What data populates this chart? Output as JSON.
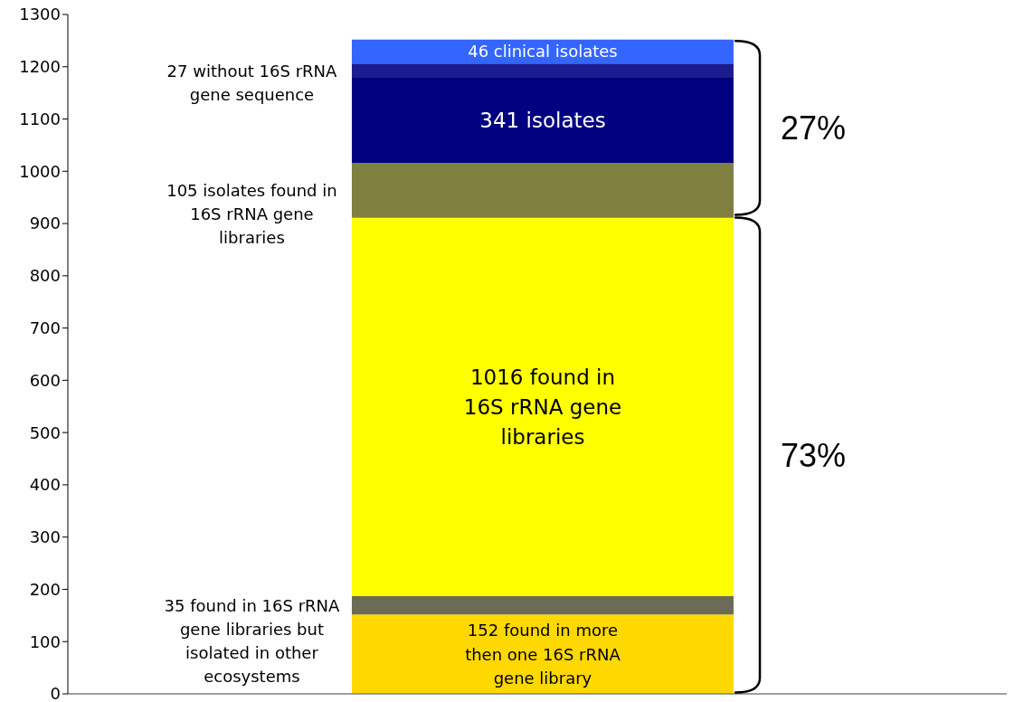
{
  "chart_data": {
    "type": "bar",
    "stacked": true,
    "categories": [
      null
    ],
    "tick_labels": "y",
    "ylim": [
      0,
      1300
    ],
    "yticks": [
      0,
      100,
      200,
      300,
      400,
      500,
      600,
      700,
      800,
      900,
      1000,
      1100,
      1200,
      1300
    ],
    "series": [
      {
        "color": "#ffd800",
        "values": [
          152
        ],
        "value_labels": [
          "152 found in more then one 16S rRNA gene library"
        ]
      },
      {
        "name": "35 found in 16S rRNA gene libraries but isolated in other ecosystems",
        "color": "#6b6b58",
        "values": [
          35
        ]
      },
      {
        "color": "#ffff00",
        "values": [
          724
        ]
      },
      {
        "name": "105 isolates found in 16S rRNA gene libraries",
        "color": "#7f7f40",
        "values": [
          105
        ]
      },
      {
        "color": "#000080",
        "values": [
          163
        ]
      },
      {
        "name": "27 without 16S rRNA gene sequence",
        "color": "#1c1c90",
        "values": [
          27
        ]
      },
      {
        "color": "#3366ff",
        "values": [
          46
        ],
        "value_labels": [
          "46 clinical isolates"
        ]
      }
    ],
    "annotations": [
      "341 isolates",
      "1016 found in 16S rRNA gene libraries",
      "27%",
      "73%"
    ]
  }
}
